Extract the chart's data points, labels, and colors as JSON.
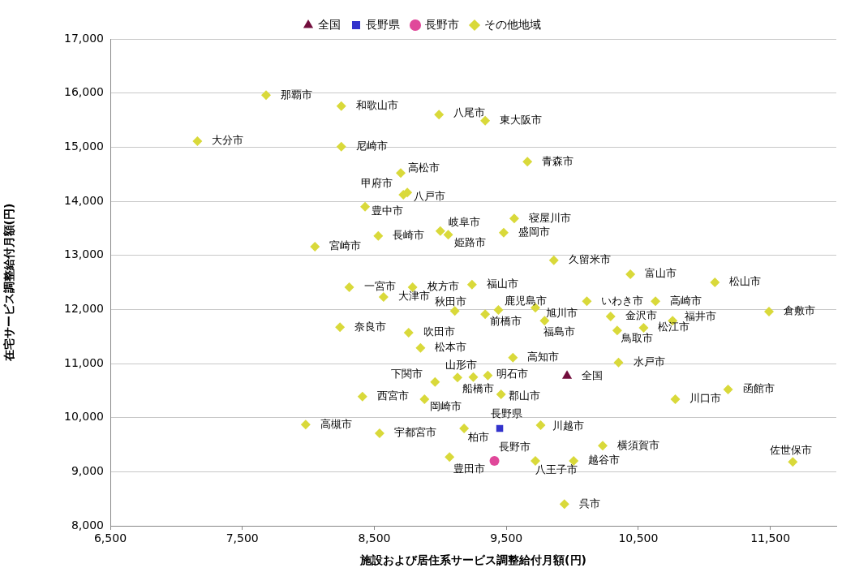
{
  "chart_data": {
    "type": "scatter",
    "xlabel": "施設および居住系サービス調整給付月額(円)",
    "ylabel": "在宅サービス調整給付月額(円)",
    "xlim": [
      6500,
      12000
    ],
    "xticks": [
      {
        "value": 6500,
        "label": "6,500"
      },
      {
        "value": 7500,
        "label": "7,500"
      },
      {
        "value": 8500,
        "label": "8,500"
      },
      {
        "value": 9500,
        "label": "9,500"
      },
      {
        "value": 10500,
        "label": "10,500"
      },
      {
        "value": 11500,
        "label": "11,500"
      }
    ],
    "ylim": [
      8000,
      17000
    ],
    "yticks": [
      {
        "value": 8000,
        "label": "8,000"
      },
      {
        "value": 9000,
        "label": "9,000"
      },
      {
        "value": 10000,
        "label": "10,000"
      },
      {
        "value": 11000,
        "label": "11,000"
      },
      {
        "value": 12000,
        "label": "12,000"
      },
      {
        "value": 13000,
        "label": "13,000"
      },
      {
        "value": 14000,
        "label": "14,000"
      },
      {
        "value": 15000,
        "label": "15,000"
      },
      {
        "value": 16000,
        "label": "16,000"
      },
      {
        "value": 17000,
        "label": "17,000"
      }
    ],
    "grid": "y",
    "legend": "top",
    "series": [
      {
        "name": "全国",
        "color": "#720e3c",
        "marker": "triangle",
        "x": [
          9960
        ],
        "values": [
          10770
        ],
        "value_labels": [
          "全国"
        ]
      },
      {
        "name": "長野県",
        "color": "#3333cc",
        "marker": "square",
        "x": [
          9450
        ],
        "values": [
          9800
        ],
        "value_labels": [
          "長野県"
        ]
      },
      {
        "name": "長野市",
        "color": "#e0489a",
        "marker": "circle",
        "x": [
          9410
        ],
        "values": [
          9200
        ],
        "value_labels": [
          "長野市"
        ]
      },
      {
        "name": "その他地域",
        "color": "#d9d93a",
        "marker": "diamond",
        "x": [
          7680,
          8250,
          8990,
          9340,
          7160,
          8250,
          9660,
          8700,
          8720,
          8750,
          8430,
          8530,
          9000,
          9060,
          8050,
          9560,
          9480,
          9860,
          10440,
          11080,
          9240,
          8310,
          8790,
          8570,
          10110,
          10630,
          9110,
          9340,
          9440,
          9720,
          9790,
          11490,
          10290,
          10760,
          10540,
          10340,
          8240,
          8760,
          8850,
          9550,
          10350,
          8960,
          9130,
          9250,
          9360,
          9460,
          11180,
          10780,
          8410,
          8880,
          9760,
          9180,
          7980,
          8540,
          10230,
          9070,
          9720,
          10010,
          11670,
          9940
        ],
        "values": [
          15960,
          15760,
          15600,
          15490,
          15110,
          15010,
          14730,
          14520,
          14120,
          14160,
          13900,
          13360,
          13450,
          13380,
          13160,
          13680,
          13420,
          12910,
          12650,
          12500,
          12460,
          12410,
          12410,
          12230,
          12150,
          12150,
          11970,
          11910,
          11990,
          12030,
          11790,
          11960,
          11870,
          11790,
          11660,
          11610,
          11670,
          11570,
          11290,
          11110,
          11020,
          10660,
          10740,
          10750,
          10780,
          10430,
          10520,
          10340,
          10390,
          10340,
          9860,
          9800,
          9870,
          9710,
          9480,
          9270,
          9200,
          9200,
          9180,
          8400
        ],
        "value_labels": [
          "那覇市",
          "和歌山市",
          "八尾市",
          "東大阪市",
          "大分市",
          "尼崎市",
          "青森市",
          "高松市",
          "甲府市",
          "八戸市",
          "豊中市",
          "長崎市",
          "岐阜市",
          "姫路市",
          "宮崎市",
          "寝屋川市",
          "盛岡市",
          "久留米市",
          "富山市",
          "松山市",
          "福山市",
          "一宮市",
          "枚方市",
          "大津市",
          "いわき市",
          "高崎市",
          "秋田市",
          "前橋市",
          "鹿児島市",
          "旭川市",
          "福島市",
          "倉敷市",
          "金沢市",
          "福井市",
          "松江市",
          "鳥取市",
          "奈良市",
          "吹田市",
          "松本市",
          "高知市",
          "水戸市",
          "下関市",
          "山形市",
          "船橋市",
          "明石市",
          "郡山市",
          "函館市",
          "川口市",
          "西宮市",
          "岡崎市",
          "川越市",
          "柏市",
          "高槻市",
          "宇都宮市",
          "横須賀市",
          "豊田市",
          "八王子市",
          "越谷市",
          "佐世保市",
          "呉市"
        ]
      }
    ]
  }
}
